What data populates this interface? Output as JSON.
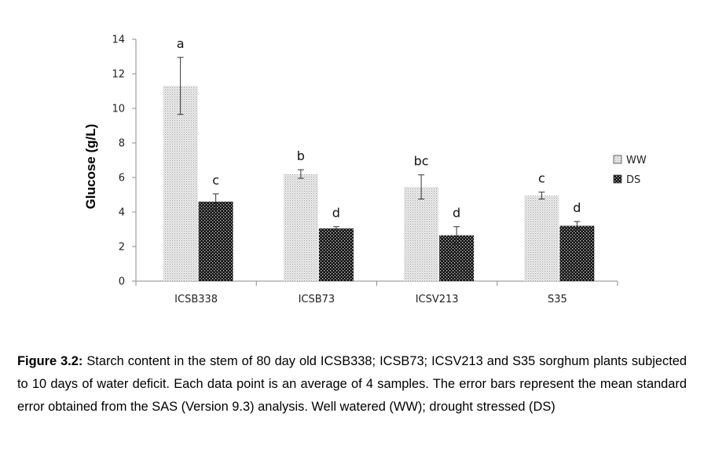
{
  "chart_data": {
    "type": "bar",
    "title": "",
    "xlabel": "",
    "ylabel": "Glucose (g/L)",
    "ylim": [
      0,
      14
    ],
    "yticks": [
      0,
      2,
      4,
      6,
      8,
      10,
      12,
      14
    ],
    "grid": false,
    "legend_position": "right",
    "categories": [
      "ICSB338",
      "ICSB73",
      "ICSV213",
      "S35"
    ],
    "series": [
      {
        "name": "WW",
        "pattern": "light-dotted",
        "color": "#d9d9d9",
        "values": [
          11.3,
          6.2,
          5.45,
          4.95
        ],
        "errors": [
          1.65,
          0.25,
          0.7,
          0.2
        ],
        "labels": [
          "a",
          "b",
          "bc",
          "c"
        ]
      },
      {
        "name": "DS",
        "pattern": "dark-checkered",
        "color": "#1a1a1a",
        "values": [
          4.6,
          3.05,
          2.65,
          3.2
        ],
        "errors": [
          0.45,
          0.1,
          0.5,
          0.25
        ],
        "labels": [
          "c",
          "d",
          "d",
          "d"
        ]
      }
    ]
  },
  "caption": {
    "label": "Figure 3.2:",
    "text": " Starch content in the stem of 80 day old ICSB338; ICSB73; ICSV213 and S35 sorghum plants subjected to 10 days of water deficit. Each data point is an average of 4 samples. The error bars represent the mean standard error obtained from the SAS (Version 9.3) analysis. Well watered (WW); drought stressed (DS)"
  }
}
